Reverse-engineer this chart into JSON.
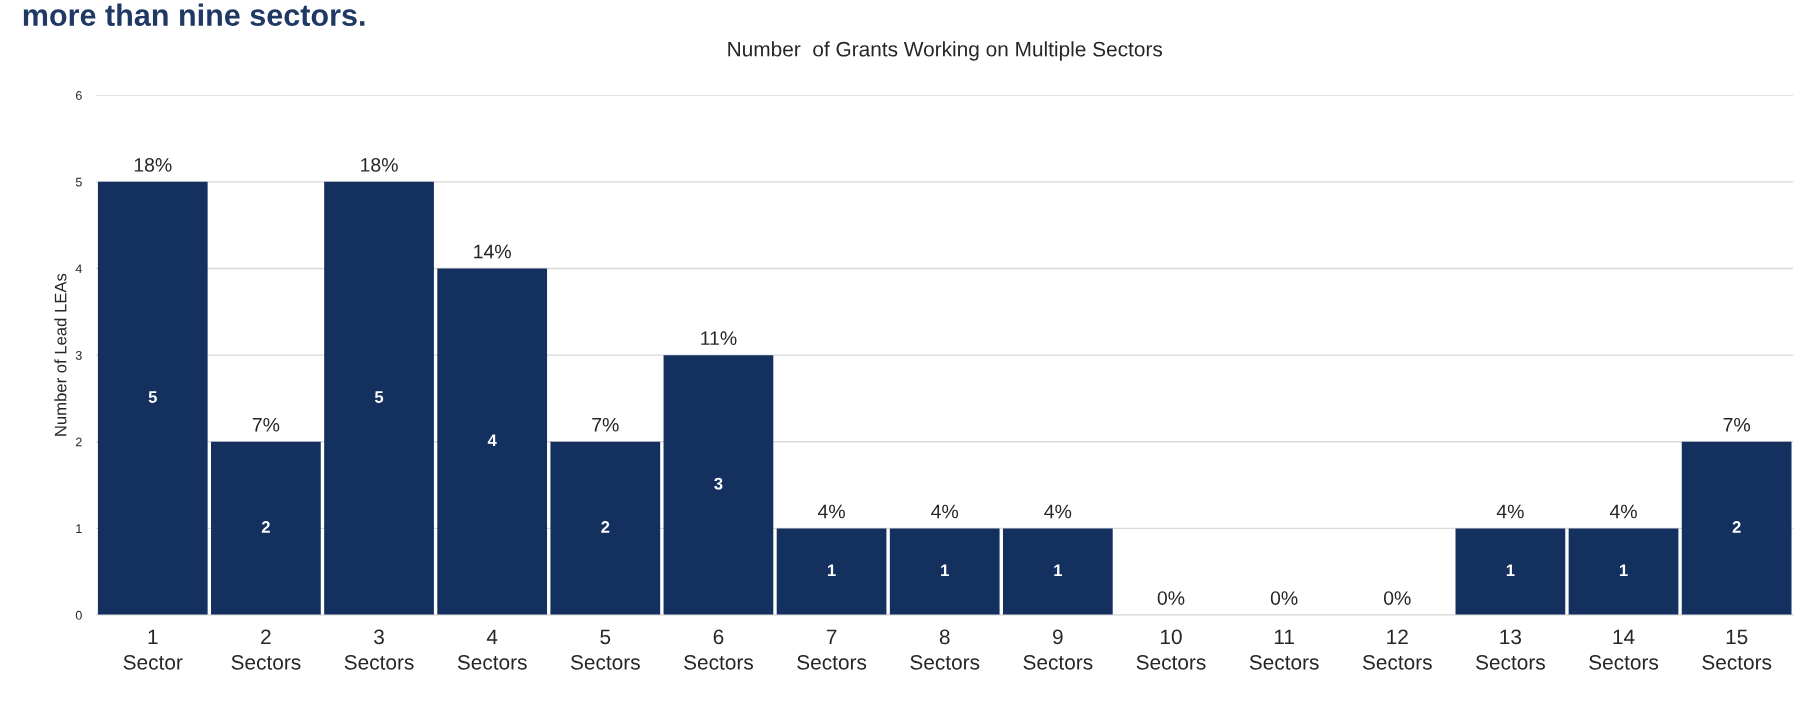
{
  "chart_data": {
    "type": "bar",
    "title": "Number  of Grants Working on Multiple Sectors",
    "ylabel": "Number of Lead LEAs",
    "annotations": [
      "more than nine sectors.",
      {
        "text": "18%",
        "x": "1\nSector",
        "y": 5
      },
      {
        "text": "7%",
        "x": "2\nSectors",
        "y": 2
      },
      {
        "text": "18%",
        "x": "3\nSectors",
        "y": 5
      },
      {
        "text": "14%",
        "x": "4\nSectors",
        "y": 4
      },
      {
        "text": "7%",
        "x": "5\nSectors",
        "y": 2
      },
      {
        "text": "11%",
        "x": "6\nSectors",
        "y": 3
      },
      {
        "text": "4%",
        "x": "7\nSectors",
        "y": 1
      },
      {
        "text": "4%",
        "x": "8\nSectors",
        "y": 1
      },
      {
        "text": "4%",
        "x": "9\nSectors",
        "y": 1
      },
      {
        "text": "0%",
        "x": "10\nSectors",
        "y": 0
      },
      {
        "text": "0%",
        "x": "11\nSectors",
        "y": 0
      },
      {
        "text": "0%",
        "x": "12\nSectors",
        "y": 0
      },
      {
        "text": "4%",
        "x": "13\nSectors",
        "y": 1
      },
      {
        "text": "4%",
        "x": "14\nSectors",
        "y": 1
      },
      {
        "text": "7%",
        "x": "15\nSectors",
        "y": 2
      }
    ],
    "categories": [
      "1\nSector",
      "2\nSectors",
      "3\nSectors",
      "4\nSectors",
      "5\nSectors",
      "6\nSectors",
      "7\nSectors",
      "8\nSectors",
      "9\nSectors",
      "10\nSectors",
      "11\nSectors",
      "12\nSectors",
      "13\nSectors",
      "14\nSectors",
      "15\nSectors"
    ],
    "values": [
      5,
      2,
      5,
      4,
      2,
      3,
      1,
      1,
      1,
      0,
      0,
      0,
      1,
      1,
      2
    ],
    "value_labels": [
      "5",
      "2",
      "5",
      "4",
      "2",
      "3",
      "1",
      "1",
      "1",
      null,
      null,
      null,
      "1",
      "1",
      "2"
    ],
    "color": "#14305f",
    "ylim": [
      0,
      6
    ],
    "yticks": [
      0,
      1,
      2,
      3,
      4,
      5,
      6
    ],
    "grid": "y"
  }
}
